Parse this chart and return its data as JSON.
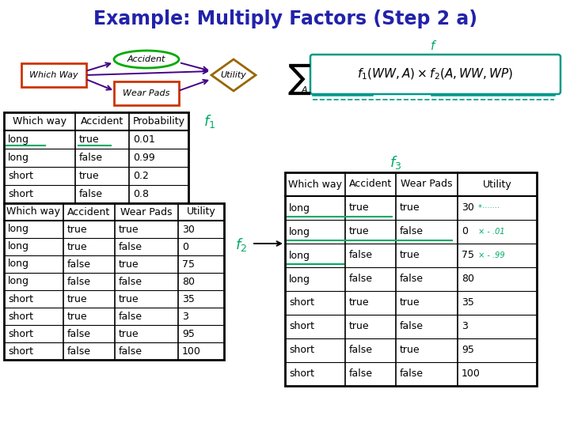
{
  "title": "Example: Multiply Factors (Step 2 a)",
  "title_color": "#2222aa",
  "bg_color": "#ffffff",
  "arrow_color": "#440088",
  "green_color": "#00aa66",
  "handwrite_color": "#00aa66",
  "red_border": "#cc3300",
  "green_border": "#00aa00",
  "gold_border": "#996600",
  "table1_headers": [
    "Which way",
    "Accident",
    "Probability"
  ],
  "table1_rows": [
    [
      "long",
      "true",
      "0.01"
    ],
    [
      "long",
      "false",
      "0.99"
    ],
    [
      "short",
      "true",
      "0.2"
    ],
    [
      "short",
      "false",
      "0.8"
    ]
  ],
  "table2_headers": [
    "Which way",
    "Accident",
    "Wear Pads",
    "Utility"
  ],
  "table2_rows": [
    [
      "long",
      "true",
      "true",
      "30"
    ],
    [
      "long",
      "true",
      "false",
      "0"
    ],
    [
      "long",
      "false",
      "true",
      "75"
    ],
    [
      "long",
      "false",
      "false",
      "80"
    ],
    [
      "short",
      "true",
      "true",
      "35"
    ],
    [
      "short",
      "true",
      "false",
      "3"
    ],
    [
      "short",
      "false",
      "true",
      "95"
    ],
    [
      "short",
      "false",
      "false",
      "100"
    ]
  ],
  "table3_headers": [
    "Which way",
    "Accident",
    "Wear Pads",
    "Utility"
  ],
  "table3_data": [
    [
      "long",
      "true",
      "true",
      "30",
      " *·······"
    ],
    [
      "long",
      "true",
      "false",
      "0",
      " × - .01"
    ],
    [
      "long",
      "false",
      "true",
      "75",
      " × - .99"
    ],
    [
      "long",
      "false",
      "false",
      "80",
      ""
    ],
    [
      "short",
      "true",
      "true",
      "35",
      ""
    ],
    [
      "short",
      "true",
      "false",
      "3",
      ""
    ],
    [
      "short",
      "false",
      "true",
      "95",
      ""
    ],
    [
      "short",
      "false",
      "false",
      "100",
      ""
    ]
  ]
}
